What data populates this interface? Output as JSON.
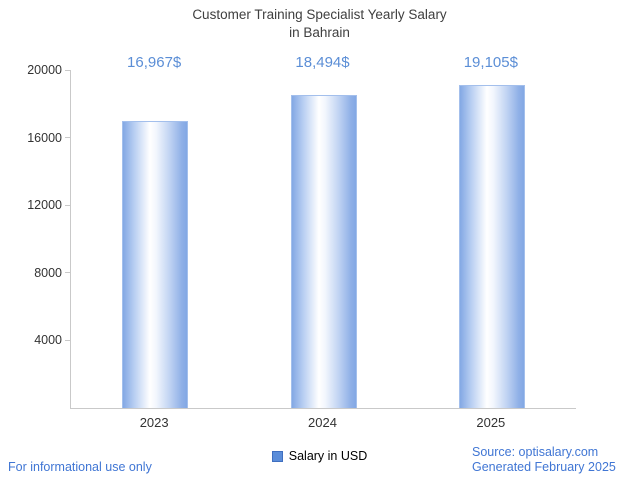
{
  "chart": {
    "title": "Customer Training Specialist Yearly Salary\nin Bahrain",
    "legend_label": "Salary in USD"
  },
  "footer": {
    "disclaimer": "For informational use only",
    "source": "Source: optisalary.com",
    "generated": "Generated February 2025"
  },
  "colors": {
    "value_label_blue": "#5b8ed6",
    "bar_edge_blue": "#83a8e4",
    "legend_swatch_blue": "#5b8dd9",
    "footer_link_blue": "#4076d4",
    "axis_gray": "#c9c9c9"
  },
  "chart_data": {
    "type": "bar",
    "title": "Customer Training Specialist Yearly Salary in Bahrain",
    "categories": [
      "2023",
      "2024",
      "2025"
    ],
    "values": [
      16967,
      18494,
      19105
    ],
    "value_labels": [
      "16,967$",
      "18,494$",
      "19,105$"
    ],
    "series": [
      {
        "name": "Salary in USD",
        "values": [
          16967,
          18494,
          19105
        ]
      }
    ],
    "xlabel": "",
    "ylabel": "",
    "ylim": [
      0,
      20000
    ],
    "yticks": [
      4000,
      8000,
      12000,
      16000,
      20000
    ],
    "grid": false,
    "legend_position": "bottom-center",
    "bar_color": "light-blue-gradient"
  }
}
